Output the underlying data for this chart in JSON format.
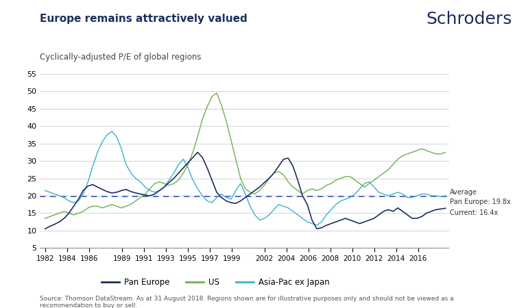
{
  "title": "Europe remains attractively valued",
  "subtitle": "Cyclically-adjusted P/E of global regions",
  "logo_text": "Schroders",
  "source_text": "Source: Thomson DataStream. As at 31 August 2018. Regions shown are for illustrative purposes only and should not be viewed as a\nrecommendation to buy or sell.",
  "average_line": 19.8,
  "average_label": "Average\nPan Europe: 19.8x",
  "current_label": "Current: 16.4x",
  "ylim": [
    5,
    55
  ],
  "yticks": [
    5,
    10,
    15,
    20,
    25,
    30,
    35,
    40,
    45,
    50,
    55
  ],
  "xlim_start": 1981.5,
  "xlim_end": 2018.8,
  "xtick_labels": [
    "1982",
    "1984",
    "1986",
    "1989",
    "1991",
    "1993",
    "1995",
    "1997",
    "1999",
    "2002",
    "2004",
    "2006",
    "2008",
    "2010",
    "2012",
    "2014",
    "2016"
  ],
  "xtick_positions": [
    1982,
    1984,
    1986,
    1989,
    1991,
    1993,
    1995,
    1997,
    1999,
    2002,
    2004,
    2006,
    2008,
    2010,
    2012,
    2014,
    2016
  ],
  "colors": {
    "pan_europe": "#1a2f5e",
    "us": "#6ab04c",
    "asia_pac": "#3ab0cc",
    "average_line": "#3355bb",
    "background": "#ffffff",
    "grid": "#cccccc",
    "title": "#1a2f5e",
    "logo": "#1a2f5e"
  },
  "legend_labels": [
    "Pan Europe",
    "US",
    "Asia-Pac ex Japan"
  ],
  "pan_europe": [
    10.5,
    11.2,
    11.8,
    12.5,
    13.5,
    15.0,
    17.0,
    19.0,
    21.5,
    22.8,
    23.2,
    22.5,
    21.8,
    21.2,
    20.8,
    21.0,
    21.5,
    21.8,
    21.2,
    20.8,
    20.5,
    20.2,
    20.0,
    20.5,
    21.5,
    22.5,
    23.8,
    25.0,
    26.5,
    28.0,
    29.5,
    31.0,
    32.5,
    31.0,
    28.0,
    24.5,
    21.0,
    19.5,
    18.5,
    18.0,
    17.8,
    18.5,
    19.5,
    20.5,
    21.5,
    22.5,
    23.8,
    25.0,
    26.5,
    28.5,
    30.5,
    30.8,
    28.5,
    24.5,
    20.0,
    17.5,
    13.0,
    10.5,
    10.8,
    11.5,
    12.0,
    12.5,
    13.0,
    13.5,
    13.0,
    12.5,
    12.0,
    12.5,
    13.0,
    13.5,
    14.5,
    15.5,
    16.0,
    15.5,
    16.5,
    15.5,
    14.5,
    13.5,
    13.5,
    14.0,
    15.0,
    15.5,
    16.0,
    16.2,
    16.4
  ],
  "us": [
    13.5,
    14.0,
    14.5,
    15.0,
    15.5,
    15.0,
    14.5,
    15.0,
    15.5,
    16.5,
    17.0,
    17.0,
    16.5,
    17.0,
    17.5,
    17.0,
    16.5,
    17.0,
    17.5,
    18.5,
    19.5,
    20.5,
    22.0,
    23.5,
    24.0,
    23.5,
    23.0,
    23.5,
    24.5,
    26.5,
    29.0,
    32.5,
    37.0,
    42.0,
    45.5,
    48.5,
    49.5,
    46.0,
    41.5,
    36.0,
    30.5,
    25.0,
    22.0,
    21.0,
    20.5,
    21.5,
    23.0,
    25.0,
    26.5,
    27.0,
    26.0,
    24.0,
    22.5,
    21.5,
    20.5,
    21.5,
    22.0,
    21.5,
    22.0,
    23.0,
    23.5,
    24.5,
    25.0,
    25.5,
    25.5,
    24.5,
    23.5,
    22.5,
    23.5,
    24.5,
    25.5,
    26.5,
    27.5,
    29.0,
    30.5,
    31.5,
    32.0,
    32.5,
    33.0,
    33.5,
    33.0,
    32.5,
    32.0,
    32.0,
    32.5
  ],
  "asia_pac": [
    21.5,
    21.0,
    20.5,
    20.0,
    19.5,
    18.5,
    18.0,
    18.5,
    20.5,
    24.0,
    28.5,
    32.5,
    35.5,
    37.5,
    38.5,
    37.0,
    33.5,
    29.0,
    26.5,
    25.0,
    24.0,
    22.5,
    21.5,
    21.0,
    21.5,
    22.5,
    24.5,
    26.5,
    29.0,
    30.5,
    28.0,
    24.5,
    22.0,
    20.0,
    18.5,
    18.0,
    19.5,
    20.5,
    19.5,
    19.0,
    21.5,
    23.5,
    20.5,
    17.0,
    14.5,
    13.0,
    13.5,
    14.5,
    16.0,
    17.5,
    17.0,
    16.5,
    15.5,
    14.5,
    13.5,
    12.5,
    12.0,
    11.5,
    12.5,
    14.5,
    16.0,
    17.5,
    18.5,
    19.0,
    19.5,
    20.5,
    22.0,
    23.5,
    24.0,
    22.5,
    21.0,
    20.5,
    20.0,
    20.5,
    21.0,
    20.5,
    19.5,
    19.5,
    20.0,
    20.5,
    20.5,
    20.0,
    20.0,
    19.8,
    20.0
  ]
}
